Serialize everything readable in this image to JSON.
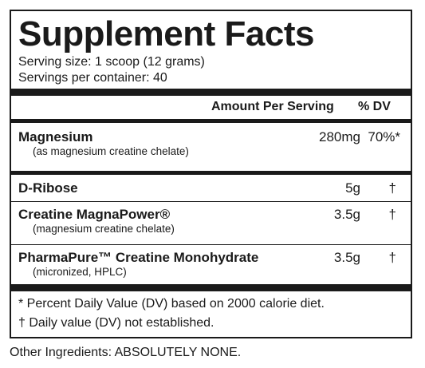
{
  "panel": {
    "title": "Supplement Facts",
    "serving_size": "Serving size: 1 scoop (12 grams)",
    "servings_per_container": "Servings per container: 40"
  },
  "header": {
    "amount_label": "Amount Per Serving",
    "dv_label": "% DV"
  },
  "ingredients": [
    {
      "name": "Magnesium",
      "sub": "(as magnesium creatine chelate)",
      "amount": "280mg",
      "dv": "70%*"
    },
    {
      "name": "D-Ribose",
      "amount": "5g",
      "dv": "†"
    },
    {
      "name": "Creatine MagnaPower®",
      "sub": "(magnesium creatine chelate)",
      "amount": "3.5g",
      "dv": "†"
    },
    {
      "name": "PharmaPure™ Creatine Monohydrate",
      "sub": "(micronized, HPLC)",
      "amount": "3.5g",
      "dv": "†"
    }
  ],
  "footnotes": {
    "dv_note": "* Percent Daily Value (DV) based on 2000 calorie diet.",
    "not_established": "† Daily value (DV) not established."
  },
  "other_ingredients": "Other Ingredients: ABSOLUTELY NONE."
}
